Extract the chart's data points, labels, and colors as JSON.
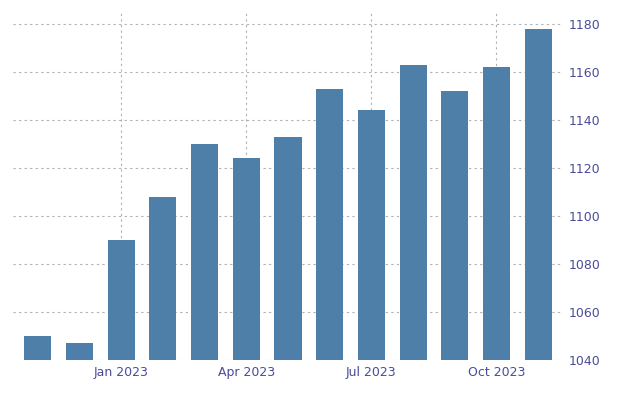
{
  "x_tick_labels": [
    "Jan 2023",
    "Apr 2023",
    "Jul 2023",
    "Oct 2023"
  ],
  "x_tick_positions": [
    2,
    5,
    8,
    11
  ],
  "values": [
    1050,
    1047,
    1090,
    1108,
    1130,
    1124,
    1133,
    1153,
    1144,
    1163,
    1152,
    1162,
    1178
  ],
  "bar_color": "#4d7fa8",
  "background_color": "#ffffff",
  "ylim": [
    1040,
    1185
  ],
  "yticks": [
    1040,
    1060,
    1080,
    1100,
    1120,
    1140,
    1160,
    1180
  ],
  "grid_color": "#b0b0b0",
  "tick_color": "#4b4b9b",
  "axis_label_color": "#4b4b9b",
  "bar_width": 0.65,
  "n_bars": 13
}
